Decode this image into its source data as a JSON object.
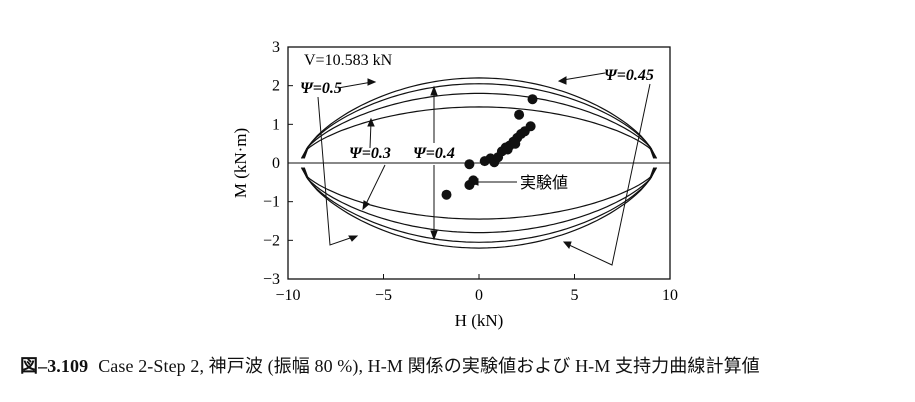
{
  "chart_data": {
    "type": "scatter",
    "xlabel": "H (kN)",
    "ylabel": "M (kN·m)",
    "xlim": [
      -10,
      10
    ],
    "ylim": [
      -3,
      3
    ],
    "x_ticks": [
      "−10",
      "−5",
      "0",
      "5",
      "10"
    ],
    "y_ticks": [
      "−3",
      "−2",
      "−1",
      "0",
      "1",
      "2",
      "3"
    ],
    "grid": false,
    "annotation_v": "V=10.583 kN",
    "experiment_label": "実験値",
    "curves": [
      {
        "name": "Ψ=0.3",
        "h_max": 9.3,
        "m_max": 1.45
      },
      {
        "name": "Ψ=0.4",
        "h_max": 9.25,
        "m_max": 1.8
      },
      {
        "name": "Ψ=0.45",
        "h_max": 9.2,
        "m_max": 2.05
      },
      {
        "name": "Ψ=0.5",
        "h_max": 9.15,
        "m_max": 2.2
      }
    ],
    "experimental_points": [
      [
        -0.5,
        -0.03
      ],
      [
        -1.7,
        -0.82
      ],
      [
        -0.5,
        -0.57
      ],
      [
        -0.3,
        -0.45
      ],
      [
        0.3,
        0.05
      ],
      [
        0.6,
        0.12
      ],
      [
        0.8,
        0.02
      ],
      [
        1.0,
        0.15
      ],
      [
        1.2,
        0.3
      ],
      [
        1.4,
        0.4
      ],
      [
        1.6,
        0.45
      ],
      [
        1.8,
        0.55
      ],
      [
        2.0,
        0.65
      ],
      [
        2.2,
        0.75
      ],
      [
        2.4,
        0.82
      ],
      [
        2.7,
        0.95
      ],
      [
        2.1,
        1.25
      ],
      [
        2.8,
        1.65
      ],
      [
        1.5,
        0.35
      ],
      [
        1.9,
        0.5
      ]
    ]
  },
  "caption": {
    "number": "図–3.109",
    "text": "Case 2-Step 2, 神戸波 (振幅 80 %), H-M 関係の実験値および H-M 支持力曲線計算値"
  }
}
